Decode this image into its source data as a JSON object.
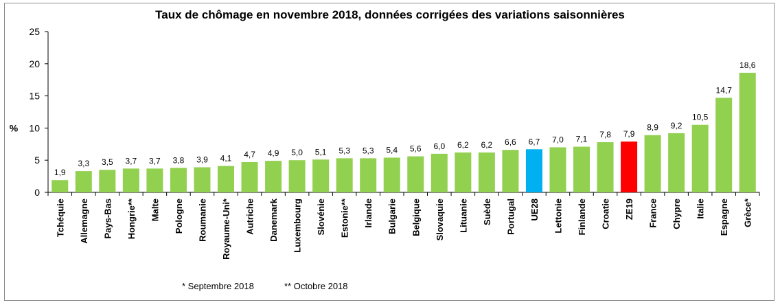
{
  "chart_data": {
    "type": "bar",
    "title": "Taux de chômage en novembre 2018, données corrigées des variations saisonnières",
    "ylabel": "%",
    "ylim": [
      0,
      25
    ],
    "yticks": [
      0,
      5,
      10,
      15,
      20,
      25
    ],
    "categories": [
      "Tchéquie",
      "Allemagne",
      "Pays-Bas",
      "Hongrie**",
      "Malte",
      "Pologne",
      "Roumanie",
      "Royaume-Uni*",
      "Autriche",
      "Danemark",
      "Luxembourg",
      "Slovénie",
      "Estonie**",
      "Irlande",
      "Bulgarie",
      "Belgique",
      "Slovaquie",
      "Lituanie",
      "Suède",
      "Portugal",
      "UE28",
      "Lettonie",
      "Finlande",
      "Croatie",
      "ZE19",
      "France",
      "Chypre",
      "Italie",
      "Espagne",
      "Grèce*"
    ],
    "values": [
      1.9,
      3.3,
      3.5,
      3.7,
      3.7,
      3.8,
      3.9,
      4.1,
      4.7,
      4.9,
      5.0,
      5.1,
      5.3,
      5.3,
      5.4,
      5.6,
      6.0,
      6.2,
      6.2,
      6.6,
      6.7,
      7.0,
      7.1,
      7.8,
      7.9,
      8.9,
      9.2,
      10.5,
      14.7,
      18.6
    ],
    "value_labels": [
      "1,9",
      "3,3",
      "3,5",
      "3,7",
      "3,7",
      "3,8",
      "3,9",
      "4,1",
      "4,7",
      "4,9",
      "5,0",
      "5,1",
      "5,3",
      "5,3",
      "5,4",
      "5,6",
      "6,0",
      "6,2",
      "6,2",
      "6,6",
      "6,7",
      "7,0",
      "7,1",
      "7,8",
      "7,9",
      "8,9",
      "9,2",
      "10,5",
      "14,7",
      "18,6"
    ],
    "colors": {
      "default": "#92d050",
      "UE28": "#00b0f0",
      "ZE19": "#ff0000"
    },
    "grid": false,
    "legend": "none"
  },
  "notes": {
    "septembre": "*  Septembre 2018",
    "octobre": "** Octobre 2018"
  }
}
